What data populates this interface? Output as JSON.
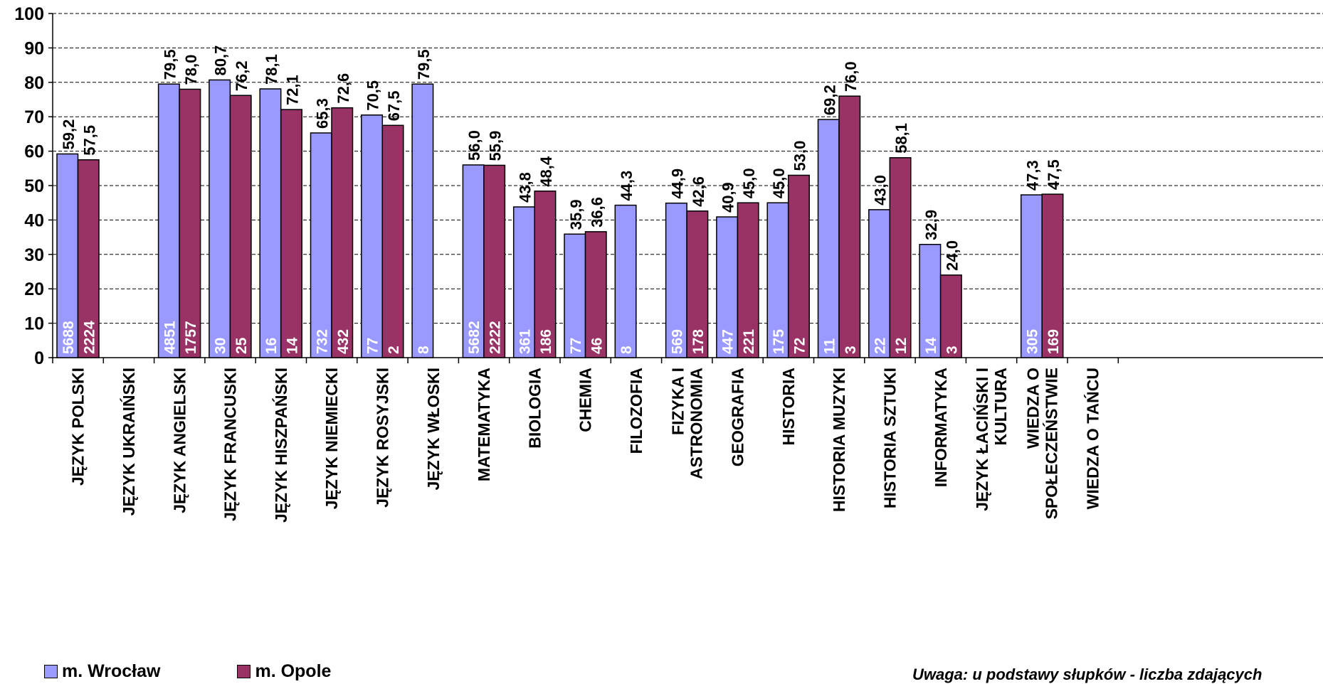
{
  "chart_data": {
    "type": "bar",
    "ylim": [
      0,
      100
    ],
    "yticks": [
      0,
      10,
      20,
      30,
      40,
      50,
      60,
      70,
      80,
      90,
      100
    ],
    "grid": true,
    "legend_placement": "bottom-left",
    "categories": [
      "JĘZYK POLSKI",
      "JĘZYK UKRAIŃSKI",
      "JĘZYK ANGIELSKI",
      "JĘZYK FRANCUSKI",
      "JĘZYK HISZPAŃSKI",
      "JĘZYK NIEMIECKI",
      "JĘZYK ROSYJSKI",
      "JĘZYK WŁOSKI",
      "MATEMATYKA",
      "BIOLOGIA",
      "CHEMIA",
      "FILOZOFIA",
      "FIZYKA I ASTRONOMIA",
      "GEOGRAFIA",
      "HISTORIA",
      "HISTORIA MUZYKI",
      "HISTORIA SZTUKI",
      "INFORMATYKA",
      "JĘZYK ŁACIŃSKI I KULTURA",
      "WIEDZA O SPOŁECZEŃSTWIE",
      "WIEDZA O TAŃCU"
    ],
    "series": [
      {
        "name": "m. Wrocław",
        "color": "#9999ff",
        "values": [
          59.2,
          null,
          79.5,
          80.7,
          78.1,
          65.3,
          70.5,
          79.5,
          56.0,
          43.8,
          35.9,
          44.3,
          44.9,
          40.9,
          45.0,
          69.2,
          43.0,
          32.9,
          null,
          47.3,
          null
        ],
        "value_labels": [
          "59,2",
          "",
          "79,5",
          "80,7",
          "78,1",
          "65,3",
          "70,5",
          "79,5",
          "56,0",
          "43,8",
          "35,9",
          "44,3",
          "44,9",
          "40,9",
          "45,0",
          "69,2",
          "43,0",
          "32,9",
          "",
          "47,3",
          ""
        ],
        "counts": [
          "5688",
          "",
          "4851",
          "30",
          "16",
          "732",
          "77",
          "8",
          "5682",
          "361",
          "77",
          "8",
          "569",
          "447",
          "175",
          "11",
          "22",
          "14",
          "",
          "305",
          ""
        ]
      },
      {
        "name": "m. Opole",
        "color": "#993366",
        "values": [
          57.5,
          null,
          78.0,
          76.2,
          72.1,
          72.6,
          67.5,
          null,
          55.9,
          48.4,
          36.6,
          null,
          42.6,
          45.0,
          53.0,
          76.0,
          58.1,
          24.0,
          null,
          47.5,
          null
        ],
        "value_labels": [
          "57,5",
          "",
          "78,0",
          "76,2",
          "72,1",
          "72,6",
          "67,5",
          "",
          "55,9",
          "48,4",
          "36,6",
          "",
          "42,6",
          "45,0",
          "53,0",
          "76,0",
          "58,1",
          "24,0",
          "",
          "47,5",
          ""
        ],
        "counts": [
          "2224",
          "",
          "1757",
          "25",
          "14",
          "432",
          "2",
          "",
          "2222",
          "186",
          "46",
          "",
          "178",
          "221",
          "72",
          "3",
          "12",
          "3",
          "",
          "169",
          ""
        ]
      }
    ],
    "note": "Uwaga: u podstawy słupków - liczba zdających"
  }
}
